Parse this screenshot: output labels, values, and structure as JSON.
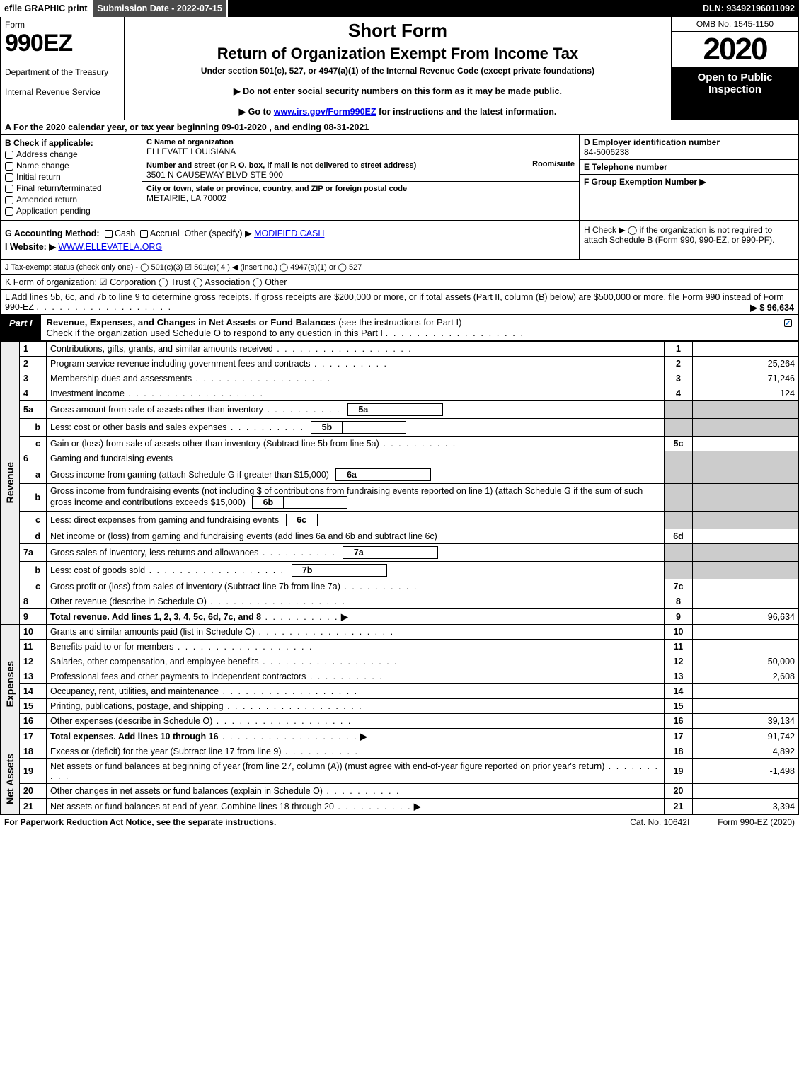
{
  "top": {
    "efile": "efile GRAPHIC print",
    "submission": "Submission Date - 2022-07-15",
    "dln": "DLN: 93492196011092"
  },
  "header": {
    "form_word": "Form",
    "form_no": "990EZ",
    "dept1": "Department of the Treasury",
    "dept2": "Internal Revenue Service",
    "short": "Short Form",
    "title": "Return of Organization Exempt From Income Tax",
    "under": "Under section 501(c), 527, or 4947(a)(1) of the Internal Revenue Code (except private foundations)",
    "hint1_pre": "▶ Do not enter social security numbers on this form as it may be made public.",
    "hint2_pre": "▶ Go to ",
    "hint2_link": "www.irs.gov/Form990EZ",
    "hint2_post": " for instructions and the latest information.",
    "omb": "OMB No. 1545-1150",
    "year": "2020",
    "open": "Open to Public Inspection"
  },
  "row_a": "A For the 2020 calendar year, or tax year beginning 09-01-2020 , and ending 08-31-2021",
  "col_b": {
    "head": "B  Check if applicable:",
    "items": [
      "Address change",
      "Name change",
      "Initial return",
      "Final return/terminated",
      "Amended return",
      "Application pending"
    ]
  },
  "col_c": {
    "c_lbl": "C Name of organization",
    "c_val": "ELLEVATE LOUISIANA",
    "addr_lbl": "Number and street (or P. O. box, if mail is not delivered to street address)",
    "room_lbl": "Room/suite",
    "addr_val": "3501 N CAUSEWAY BLVD STE 900",
    "city_lbl": "City or town, state or province, country, and ZIP or foreign postal code",
    "city_val": "METAIRIE, LA  70002"
  },
  "col_def": {
    "d_lbl": "D Employer identification number",
    "d_val": "84-5006238",
    "e_lbl": "E Telephone number",
    "e_val": "",
    "f_lbl": "F Group Exemption Number   ▶",
    "f_val": ""
  },
  "row_g": {
    "lbl": "G Accounting Method:",
    "cash": "Cash",
    "accrual": "Accrual",
    "other": "Other (specify) ▶",
    "other_val": "MODIFIED CASH"
  },
  "row_h": "H  Check ▶  ◯ if the organization is not required to attach Schedule B (Form 990, 990-EZ, or 990-PF).",
  "row_i": {
    "lbl": "I Website: ▶",
    "val": "WWW.ELLEVATELA.ORG"
  },
  "row_j": "J Tax-exempt status (check only one) - ◯ 501(c)(3)  ☑ 501(c)( 4 ) ◀ (insert no.)  ◯ 4947(a)(1) or  ◯ 527",
  "row_k": "K Form of organization:   ☑ Corporation   ◯ Trust   ◯ Association   ◯ Other",
  "row_l": {
    "text": "L Add lines 5b, 6c, and 7b to line 9 to determine gross receipts. If gross receipts are $200,000 or more, or if total assets (Part II, column (B) below) are $500,000 or more, file Form 990 instead of Form 990-EZ",
    "amt": "▶ $ 96,634"
  },
  "part1": {
    "tab": "Part I",
    "title": "Revenue, Expenses, and Changes in Net Assets or Fund Balances",
    "sub": " (see the instructions for Part I)",
    "check": "Check if the organization used Schedule O to respond to any question in this Part I"
  },
  "side_labels": {
    "rev": "Revenue",
    "exp": "Expenses",
    "net": "Net Assets"
  },
  "lines": {
    "l1": {
      "n": "1",
      "d": "Contributions, gifts, grants, and similar amounts received",
      "box": "1",
      "amt": ""
    },
    "l2": {
      "n": "2",
      "d": "Program service revenue including government fees and contracts",
      "box": "2",
      "amt": "25,264"
    },
    "l3": {
      "n": "3",
      "d": "Membership dues and assessments",
      "box": "3",
      "amt": "71,246"
    },
    "l4": {
      "n": "4",
      "d": "Investment income",
      "box": "4",
      "amt": "124"
    },
    "l5a": {
      "n": "5a",
      "d": "Gross amount from sale of assets other than inventory",
      "mini": "5a"
    },
    "l5b": {
      "n": "b",
      "d": "Less: cost or other basis and sales expenses",
      "mini": "5b"
    },
    "l5c": {
      "n": "c",
      "d": "Gain or (loss) from sale of assets other than inventory (Subtract line 5b from line 5a)",
      "box": "5c",
      "amt": ""
    },
    "l6": {
      "n": "6",
      "d": "Gaming and fundraising events"
    },
    "l6a": {
      "n": "a",
      "d": "Gross income from gaming (attach Schedule G if greater than $15,000)",
      "mini": "6a"
    },
    "l6b": {
      "n": "b",
      "d": "Gross income from fundraising events (not including $                    of contributions from fundraising events reported on line 1) (attach Schedule G if the sum of such gross income and contributions exceeds $15,000)",
      "mini": "6b"
    },
    "l6c": {
      "n": "c",
      "d": "Less: direct expenses from gaming and fundraising events",
      "mini": "6c"
    },
    "l6d": {
      "n": "d",
      "d": "Net income or (loss) from gaming and fundraising events (add lines 6a and 6b and subtract line 6c)",
      "box": "6d",
      "amt": ""
    },
    "l7a": {
      "n": "7a",
      "d": "Gross sales of inventory, less returns and allowances",
      "mini": "7a"
    },
    "l7b": {
      "n": "b",
      "d": "Less: cost of goods sold",
      "mini": "7b"
    },
    "l7c": {
      "n": "c",
      "d": "Gross profit or (loss) from sales of inventory (Subtract line 7b from line 7a)",
      "box": "7c",
      "amt": ""
    },
    "l8": {
      "n": "8",
      "d": "Other revenue (describe in Schedule O)",
      "box": "8",
      "amt": ""
    },
    "l9": {
      "n": "9",
      "d": "Total revenue. Add lines 1, 2, 3, 4, 5c, 6d, 7c, and 8",
      "box": "9",
      "amt": "96,634",
      "arrow": "▶",
      "bold": true
    },
    "l10": {
      "n": "10",
      "d": "Grants and similar amounts paid (list in Schedule O)",
      "box": "10",
      "amt": ""
    },
    "l11": {
      "n": "11",
      "d": "Benefits paid to or for members",
      "box": "11",
      "amt": ""
    },
    "l12": {
      "n": "12",
      "d": "Salaries, other compensation, and employee benefits",
      "box": "12",
      "amt": "50,000"
    },
    "l13": {
      "n": "13",
      "d": "Professional fees and other payments to independent contractors",
      "box": "13",
      "amt": "2,608"
    },
    "l14": {
      "n": "14",
      "d": "Occupancy, rent, utilities, and maintenance",
      "box": "14",
      "amt": ""
    },
    "l15": {
      "n": "15",
      "d": "Printing, publications, postage, and shipping",
      "box": "15",
      "amt": ""
    },
    "l16": {
      "n": "16",
      "d": "Other expenses (describe in Schedule O)",
      "box": "16",
      "amt": "39,134"
    },
    "l17": {
      "n": "17",
      "d": "Total expenses. Add lines 10 through 16",
      "box": "17",
      "amt": "91,742",
      "arrow": "▶",
      "bold": true
    },
    "l18": {
      "n": "18",
      "d": "Excess or (deficit) for the year (Subtract line 17 from line 9)",
      "box": "18",
      "amt": "4,892"
    },
    "l19": {
      "n": "19",
      "d": "Net assets or fund balances at beginning of year (from line 27, column (A)) (must agree with end-of-year figure reported on prior year's return)",
      "box": "19",
      "amt": "-1,498"
    },
    "l20": {
      "n": "20",
      "d": "Other changes in net assets or fund balances (explain in Schedule O)",
      "box": "20",
      "amt": ""
    },
    "l21": {
      "n": "21",
      "d": "Net assets or fund balances at end of year. Combine lines 18 through 20",
      "box": "21",
      "amt": "3,394",
      "arrow": "▶"
    }
  },
  "footer": {
    "l": "For Paperwork Reduction Act Notice, see the separate instructions.",
    "c": "Cat. No. 10642I",
    "r": "Form 990-EZ (2020)"
  },
  "colors": {
    "shade": "#cccccc",
    "link": "#0000ee",
    "check": "#1976d2"
  }
}
